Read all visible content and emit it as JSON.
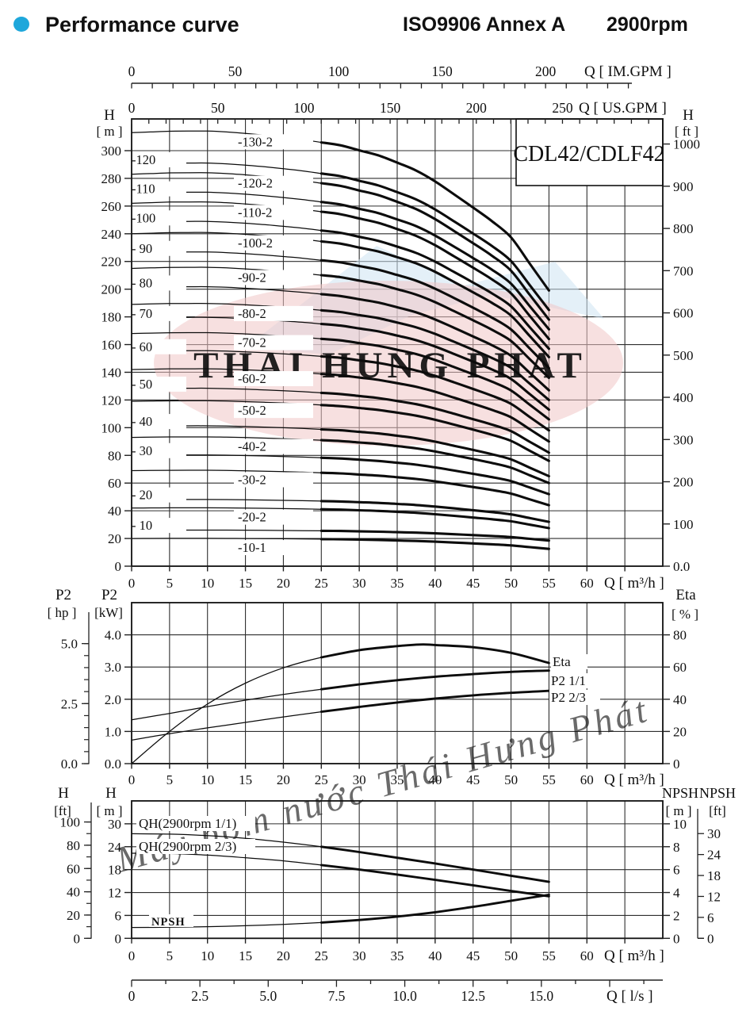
{
  "header": {
    "bullet_color": "#1ea7db",
    "title": "Performance curve",
    "standard": "ISO9906 Annex A",
    "speed": "2900rpm"
  },
  "watermark": {
    "logo_text": "THAI HUNG PHAT",
    "rotated_text": "Máy bơm nước Thái Hưng Phát",
    "pink": "#f0c6c6",
    "blue": "#cde3f3",
    "text_pink": "#eab5b5"
  },
  "chart_data": [
    {
      "id": "head_flow",
      "type": "line",
      "title": "CDL42/CDLF42",
      "x_axis": {
        "unit": "Q [ m³/h ]",
        "tick_labels": [
          "0",
          "5",
          "10",
          "15",
          "20",
          "25",
          "30",
          "35",
          "40",
          "45",
          "50",
          "55",
          "60"
        ],
        "tick_step": 5,
        "grid_max": 65,
        "plot_max": 70
      },
      "x_axis_top_us": {
        "unit": "Q [ US.GPM ]",
        "tick_labels": [
          "0",
          "50",
          "100",
          "150",
          "200",
          "250"
        ],
        "label_step_gpm": 50,
        "minor_step_gpm": 10,
        "gpm_to_m3h": 0.22712,
        "max_gpm": 300
      },
      "x_axis_top_im": {
        "unit": "Q [ IM.GPM ]",
        "tick_labels": [
          "0",
          "50",
          "100",
          "150",
          "200"
        ],
        "label_step_gpm": 50,
        "minor_step_gpm": 10,
        "gpm_to_m3h": 0.27276,
        "max_gpm": 240
      },
      "y_axis_left": {
        "name": "H",
        "unit": "[ m ]",
        "tick_labels": [
          "0",
          "20",
          "40",
          "60",
          "80",
          "100",
          "120",
          "140",
          "160",
          "180",
          "200",
          "220",
          "240",
          "260",
          "280",
          "300"
        ],
        "tick_step_m": 20,
        "max_m": 322.9
      },
      "y_axis_right": {
        "name": "H",
        "unit": "[ ft ]",
        "tick_labels": [
          "0.0",
          "100",
          "200",
          "300",
          "400",
          "500",
          "600",
          "700",
          "800",
          "900",
          "1000"
        ],
        "tick_step_ft": 100,
        "ft_to_m": 0.3048
      },
      "q_end": 55,
      "bold_from_q": 25,
      "drop_profile": [
        0,
        -0.01,
        -0.01,
        0.01,
        0.04,
        0.08,
        0.15,
        0.26,
        0.44,
        0.63,
        1.0
      ],
      "series": [
        {
          "label": "-130-2",
          "col": 2,
          "h0_m": 313,
          "h55_m": 199
        },
        {
          "label": "-120",
          "col": 1,
          "h0_m": 290,
          "h55_m": 185
        },
        {
          "label": "-120-2",
          "col": 2,
          "h0_m": 283,
          "h55_m": 178
        },
        {
          "label": "-110",
          "col": 1,
          "h0_m": 269,
          "h55_m": 171
        },
        {
          "label": "-110-2",
          "col": 2,
          "h0_m": 262,
          "h55_m": 164
        },
        {
          "label": "-100",
          "col": 1,
          "h0_m": 248,
          "h55_m": 157
        },
        {
          "label": "-100-2",
          "col": 2,
          "h0_m": 240,
          "h55_m": 151
        },
        {
          "label": "- 90",
          "col": 1,
          "h0_m": 226,
          "h55_m": 143
        },
        {
          "label": "-90-2",
          "col": 2,
          "h0_m": 215,
          "h55_m": 136
        },
        {
          "label": "- 80",
          "col": 1,
          "h0_m": 201,
          "h55_m": 127
        },
        {
          "label": "-80-2",
          "col": 2,
          "h0_m": 189,
          "h55_m": 120
        },
        {
          "label": "- 70",
          "col": 1,
          "h0_m": 179,
          "h55_m": 113
        },
        {
          "label": "-70-2",
          "col": 2,
          "h0_m": 168,
          "h55_m": 106
        },
        {
          "label": "- 60",
          "col": 1,
          "h0_m": 155,
          "h55_m": 98
        },
        {
          "label": "-60-2",
          "col": 2,
          "h0_m": 142,
          "h55_m": 90
        },
        {
          "label": "- 50",
          "col": 1,
          "h0_m": 128,
          "h55_m": 82
        },
        {
          "label": "-50-2",
          "col": 2,
          "h0_m": 119,
          "h55_m": 76
        },
        {
          "label": "- 40",
          "col": 1,
          "h0_m": 101,
          "h55_m": 65
        },
        {
          "label": "-40-2",
          "col": 2,
          "h0_m": 93,
          "h55_m": 60
        },
        {
          "label": "- 30",
          "col": 1,
          "h0_m": 80,
          "h55_m": 52
        },
        {
          "label": "-30-2",
          "col": 2,
          "h0_m": 69,
          "h55_m": 44
        },
        {
          "label": "- 20",
          "col": 1,
          "h0_m": 48,
          "h55_m": 32
        },
        {
          "label": "-20-2",
          "col": 2,
          "h0_m": 42,
          "h55_m": 27.5
        },
        {
          "label": "- 10",
          "col": 1,
          "h0_m": 26,
          "h55_m": 18.5
        },
        {
          "label": "-10-1",
          "col": 2,
          "h0_m": 20,
          "h55_m": 12.5
        }
      ]
    },
    {
      "id": "power_efficiency",
      "type": "line",
      "x_axis": {
        "unit": "Q [ m³/h ]",
        "tick_labels": [
          "0",
          "5",
          "10",
          "15",
          "20",
          "25",
          "30",
          "35",
          "40",
          "45",
          "50",
          "55",
          "60"
        ],
        "tick_step": 5,
        "grid_max": 65,
        "plot_max": 70
      },
      "y_axis_left_outer": {
        "name": "P2",
        "unit": "[ hp ]",
        "tick_labels": [
          "0.0",
          "2.5",
          "5.0"
        ],
        "label_step_hp": 2.5,
        "minor_step_hp": 0.5,
        "hp_to_kw": 0.7457
      },
      "y_axis_left": {
        "name": "P2",
        "unit": "[kW]",
        "tick_labels": [
          "0.0",
          "1.0",
          "2.0",
          "3.0",
          "4.0"
        ],
        "tick_step_kw": 1,
        "max_kw": 5
      },
      "y_axis_right": {
        "name": "Eta",
        "unit": "[ % ]",
        "tick_labels": [
          "0",
          "20",
          "40",
          "60",
          "80"
        ],
        "tick_step_pct": 20,
        "max_pct": 100
      },
      "bold_from_q": 25,
      "series": [
        {
          "label": "Eta",
          "axis": "eta",
          "points": [
            [
              0,
              0
            ],
            [
              5,
              20
            ],
            [
              10,
              37
            ],
            [
              15,
              50
            ],
            [
              20,
              59.5
            ],
            [
              25,
              66
            ],
            [
              30,
              70.5
            ],
            [
              35,
              73
            ],
            [
              38,
              74
            ],
            [
              40,
              73.7
            ],
            [
              45,
              72.3
            ],
            [
              50,
              68.8
            ],
            [
              55,
              62.5
            ]
          ]
        },
        {
          "label": "P2  1/1",
          "axis": "kw",
          "points": [
            [
              0,
              1.36
            ],
            [
              5,
              1.56
            ],
            [
              10,
              1.77
            ],
            [
              15,
              1.97
            ],
            [
              20,
              2.15
            ],
            [
              25,
              2.31
            ],
            [
              30,
              2.46
            ],
            [
              35,
              2.59
            ],
            [
              40,
              2.7
            ],
            [
              45,
              2.78
            ],
            [
              50,
              2.85
            ],
            [
              55,
              2.89
            ]
          ]
        },
        {
          "label": "P2  2/3",
          "axis": "kw",
          "points": [
            [
              0,
              0.73
            ],
            [
              5,
              0.93
            ],
            [
              10,
              1.11
            ],
            [
              15,
              1.28
            ],
            [
              20,
              1.45
            ],
            [
              25,
              1.61
            ],
            [
              30,
              1.76
            ],
            [
              35,
              1.9
            ],
            [
              40,
              2.02
            ],
            [
              45,
              2.12
            ],
            [
              50,
              2.2
            ],
            [
              55,
              2.26
            ]
          ]
        }
      ]
    },
    {
      "id": "qh_npsh",
      "type": "line",
      "x_axis": {
        "unit": "Q [ m³/h ]",
        "tick_labels": [
          "0",
          "5",
          "10",
          "15",
          "20",
          "25",
          "30",
          "35",
          "40",
          "45",
          "50",
          "55",
          "60"
        ],
        "tick_step": 5,
        "grid_max": 65,
        "plot_max": 70
      },
      "x_axis_bottom_ls": {
        "unit": "Q [ l/s ]",
        "tick_labels": [
          "0",
          "2.5",
          "5.0",
          "7.5",
          "10.0",
          "12.5",
          "15.0"
        ],
        "label_step_ls": 2.5,
        "minor_step_ls": 1.25,
        "ls_to_m3h": 3.6,
        "max_ls": 18.75
      },
      "y_axis_left": {
        "name": "H",
        "unit": "[ m ]",
        "tick_labels": [
          "0",
          "6",
          "12",
          "18",
          "24",
          "30"
        ],
        "tick_step_m": 6,
        "max_m": 36
      },
      "y_axis_left_outer": {
        "name": "H",
        "unit": "[ft]",
        "tick_labels": [
          "0",
          "20",
          "40",
          "60",
          "80",
          "100"
        ],
        "label_step_ft": 20,
        "minor_step_ft": 10,
        "ft_to_m": 0.3048
      },
      "y_axis_right": {
        "name": "NPSH",
        "unit": "[ m ]",
        "tick_labels": [
          "0",
          "2",
          "4",
          "6",
          "8",
          "10"
        ],
        "tick_step_m": 2,
        "max_m": 12
      },
      "y_axis_right_outer": {
        "name": "NPSH",
        "unit": "[ft]",
        "tick_labels": [
          "0",
          "6",
          "12",
          "18",
          "24",
          "30"
        ],
        "label_step_ft": 6,
        "ft_to_m": 0.3048
      },
      "bold_from_q": 25,
      "series": [
        {
          "label": "QH(2900rpm 1/1)",
          "axis": "m",
          "points": [
            [
              0,
              27.4
            ],
            [
              5,
              27.3
            ],
            [
              10,
              26.9
            ],
            [
              15,
              26.2
            ],
            [
              20,
              25.2
            ],
            [
              25,
              24.0
            ],
            [
              30,
              22.6
            ],
            [
              35,
              21.1
            ],
            [
              40,
              19.6
            ],
            [
              45,
              18.0
            ],
            [
              50,
              16.4
            ],
            [
              55,
              14.8
            ]
          ]
        },
        {
          "label": "QH(2900rpm 2/3)",
          "axis": "m",
          "points": [
            [
              0,
              22.3
            ],
            [
              5,
              22.2
            ],
            [
              10,
              21.8
            ],
            [
              15,
              21.1
            ],
            [
              20,
              20.3
            ],
            [
              25,
              19.2
            ],
            [
              30,
              18.0
            ],
            [
              35,
              16.7
            ],
            [
              40,
              15.3
            ],
            [
              45,
              13.9
            ],
            [
              50,
              12.4
            ],
            [
              55,
              11.0
            ]
          ]
        },
        {
          "label": "NPSH",
          "axis": "npsh",
          "points": [
            [
              0,
              0.95
            ],
            [
              5,
              0.97
            ],
            [
              10,
              1.02
            ],
            [
              15,
              1.1
            ],
            [
              20,
              1.22
            ],
            [
              25,
              1.38
            ],
            [
              30,
              1.6
            ],
            [
              35,
              1.9
            ],
            [
              40,
              2.28
            ],
            [
              45,
              2.75
            ],
            [
              50,
              3.28
            ],
            [
              55,
              3.8
            ]
          ]
        }
      ]
    }
  ]
}
